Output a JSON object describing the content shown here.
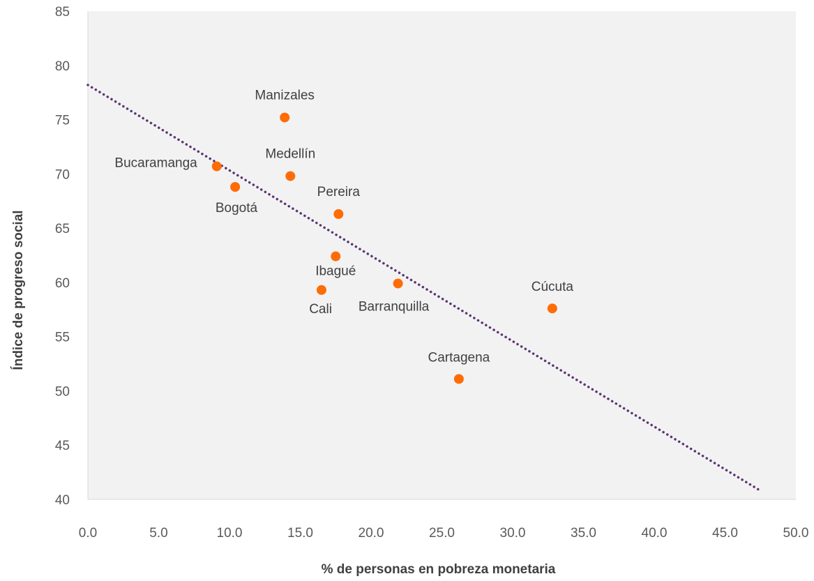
{
  "chart_data": {
    "type": "scatter",
    "title": "",
    "xlabel": "% de personas en pobreza monetaria",
    "ylabel": "Índice de progreso social",
    "xlim": [
      0,
      50
    ],
    "ylim": [
      40,
      85
    ],
    "x_ticks": [
      "0.0",
      "5.0",
      "10.0",
      "15.0",
      "20.0",
      "25.0",
      "30.0",
      "35.0",
      "40.0",
      "45.0",
      "50.0"
    ],
    "y_ticks": [
      "40",
      "45",
      "50",
      "55",
      "60",
      "65",
      "70",
      "75",
      "80",
      "85"
    ],
    "grid": false,
    "legend": "none",
    "background_color": "#f2f2f2",
    "marker_color": "#fe6c07",
    "trendline": {
      "type": "linear",
      "style": "dotted",
      "color": "#5a3572",
      "x_range": [
        0,
        47.5
      ],
      "y_at_start": 78.2,
      "y_at_end": 40.8
    },
    "points": [
      {
        "label": "Manizales",
        "x": 13.9,
        "y": 75.2
      },
      {
        "label": "Medellín",
        "x": 14.3,
        "y": 69.8
      },
      {
        "label": "Bucaramanga",
        "x": 9.1,
        "y": 70.7
      },
      {
        "label": "Bogotá",
        "x": 10.4,
        "y": 68.8
      },
      {
        "label": "Pereira",
        "x": 17.7,
        "y": 66.3
      },
      {
        "label": "Ibagué",
        "x": 17.5,
        "y": 62.4
      },
      {
        "label": "Cali",
        "x": 16.5,
        "y": 59.3
      },
      {
        "label": "Barranquilla",
        "x": 21.9,
        "y": 59.9
      },
      {
        "label": "Cúcuta",
        "x": 32.8,
        "y": 57.6
      },
      {
        "label": "Cartagena",
        "x": 26.2,
        "y": 51.1
      }
    ]
  }
}
